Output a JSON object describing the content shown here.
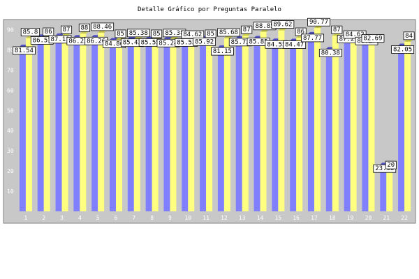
{
  "chart_data": {
    "type": "bar",
    "title": "Detalle Gráfico por Preguntas Paralelo",
    "xlabel": "",
    "ylabel": "",
    "categories": [
      "1",
      "2",
      "3",
      "4",
      "5",
      "6",
      "7",
      "8",
      "9",
      "10",
      "11",
      "12",
      "13",
      "14",
      "15",
      "16",
      "17",
      "18",
      "19",
      "20",
      "21",
      "22"
    ],
    "series": [
      {
        "values": [
          81.54,
          86.57,
          87.11,
          86.23,
          86.26,
          84.86,
          85.43,
          85.55,
          85.24,
          85.53,
          85.92,
          81.15,
          85.72,
          85.85,
          84.55,
          84.47,
          87.77,
          80.38,
          87.21,
          86.27,
          23.08,
          82.05
        ]
      },
      {
        "values": [
          85.8,
          86.0,
          87.0,
          88.0,
          88.46,
          85.0,
          85.38,
          85.0,
          85.38,
          84.62,
          85.0,
          85.68,
          87.0,
          88.85,
          89.62,
          86.0,
          90.77,
          87.0,
          84.62,
          82.69,
          20.0,
          84.0
        ]
      }
    ],
    "ylim": [
      0,
      95
    ],
    "yticks": [
      10,
      20,
      30,
      40,
      50,
      60,
      70,
      80,
      90
    ],
    "grid": false,
    "legend": "none",
    "colors": {
      "series_1": "#8080ff",
      "series_2": "#ffff80",
      "plot_background": "#c8c8c8",
      "label_box": "#ffffff"
    }
  }
}
